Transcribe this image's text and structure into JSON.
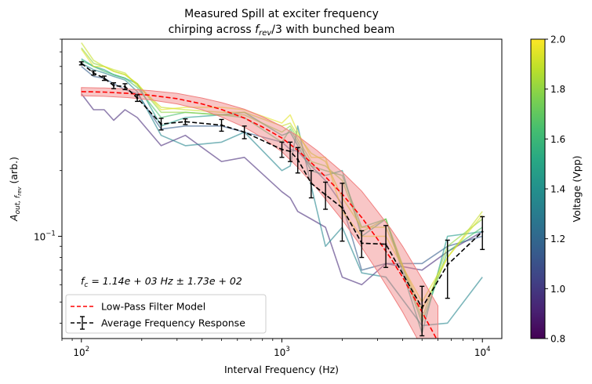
{
  "chart_data": {
    "type": "line",
    "title_line1": "Measured Spill at exciter frequency",
    "title_line2_prefix": "chirping across ",
    "title_line2_math": "f",
    "title_line2_sub": "rev",
    "title_line2_suffix": "/3 with bunched beam",
    "xlabel": "Interval Frequency (Hz)",
    "ylabel_math": "A",
    "ylabel_sub": "out, f",
    "ylabel_subsub": "rev",
    "ylabel_suffix": " (arb.)",
    "x_scale": "log",
    "y_scale": "log",
    "xlim": [
      80,
      12500
    ],
    "ylim": [
      0.034,
      0.8
    ],
    "x_ticks": [
      {
        "value": 100,
        "base": "10",
        "exp": "2"
      },
      {
        "value": 1000,
        "base": "10",
        "exp": "3"
      },
      {
        "value": 10000,
        "base": "10",
        "exp": "4"
      }
    ],
    "y_ticks": [
      {
        "value": 0.1,
        "base": "10",
        "exp": "−1"
      }
    ],
    "annotation": {
      "prefix": "f",
      "sub": "c",
      "body": " = 1.14e + 03 Hz ± 1.73e + 02"
    },
    "legend": {
      "placement": "lower-left",
      "entries": [
        {
          "label": "Low-Pass Filter Model",
          "color": "#ff0000",
          "style": "dashed"
        },
        {
          "label": "Average Frequency Response",
          "color": "#000000",
          "style": "dashed-errorbar"
        }
      ]
    },
    "model": {
      "name": "Low-Pass Filter Model",
      "color": "#ff0000",
      "band_color": "#f08080",
      "x": [
        100,
        130,
        170,
        220,
        300,
        400,
        500,
        650,
        800,
        1000,
        1200,
        1500,
        2000,
        2500,
        3000,
        3500,
        4000,
        5000,
        6000
      ],
      "y": [
        0.46,
        0.458,
        0.452,
        0.443,
        0.427,
        0.404,
        0.381,
        0.348,
        0.317,
        0.282,
        0.248,
        0.205,
        0.156,
        0.122,
        0.097,
        0.079,
        0.065,
        0.045,
        0.033
      ],
      "band_low": [
        0.44,
        0.438,
        0.432,
        0.422,
        0.404,
        0.38,
        0.352,
        0.316,
        0.283,
        0.244,
        0.207,
        0.165,
        0.119,
        0.089,
        0.069,
        0.055,
        0.045,
        0.031,
        0.023
      ],
      "band_high": [
        0.48,
        0.478,
        0.473,
        0.465,
        0.452,
        0.43,
        0.41,
        0.382,
        0.353,
        0.319,
        0.288,
        0.247,
        0.197,
        0.161,
        0.13,
        0.108,
        0.09,
        0.064,
        0.048
      ]
    },
    "average": {
      "name": "Average Frequency Response",
      "color": "#000000",
      "x": [
        100,
        115,
        130,
        145,
        165,
        190,
        250,
        330,
        500,
        650,
        1000,
        1100,
        1200,
        1400,
        1650,
        2000,
        2500,
        3300,
        5000,
        6700,
        10000
      ],
      "y": [
        0.62,
        0.56,
        0.53,
        0.49,
        0.485,
        0.43,
        0.327,
        0.335,
        0.323,
        0.3,
        0.25,
        0.245,
        0.225,
        0.175,
        0.155,
        0.135,
        0.093,
        0.092,
        0.047,
        0.074,
        0.105
      ],
      "err": [
        0.01,
        0.012,
        0.012,
        0.015,
        0.015,
        0.015,
        0.02,
        0.01,
        0.02,
        0.02,
        0.02,
        0.025,
        0.03,
        0.025,
        0.022,
        0.04,
        0.013,
        0.02,
        0.012,
        0.022,
        0.018
      ]
    },
    "voltage_series": [
      {
        "voltage": 0.95,
        "x": [
          100,
          115,
          130,
          145,
          165,
          190,
          250,
          330,
          500,
          650,
          1000,
          1100,
          1200,
          1400,
          1650,
          2000,
          2500,
          3300,
          5000,
          6700,
          10000
        ],
        "y": [
          0.45,
          0.38,
          0.38,
          0.34,
          0.38,
          0.35,
          0.26,
          0.29,
          0.22,
          0.23,
          0.16,
          0.15,
          0.13,
          0.12,
          0.11,
          0.065,
          0.06,
          0.075,
          0.07,
          0.085,
          0.105
        ]
      },
      {
        "voltage": 1.15,
        "x": [
          100,
          115,
          130,
          145,
          165,
          190,
          250,
          330,
          500,
          650,
          1000,
          1100,
          1200,
          1400,
          1650,
          2000,
          2500,
          3300,
          5000,
          6700,
          10000
        ],
        "y": [
          0.6,
          0.54,
          0.53,
          0.5,
          0.47,
          0.45,
          0.31,
          0.32,
          0.32,
          0.3,
          0.27,
          0.25,
          0.245,
          0.21,
          0.18,
          0.14,
          0.07,
          0.075,
          0.075,
          0.09,
          0.1
        ]
      },
      {
        "voltage": 1.35,
        "x": [
          100,
          115,
          130,
          145,
          165,
          190,
          250,
          330,
          500,
          650,
          1000,
          1100,
          1200,
          1400,
          1650,
          2000,
          2500,
          3300,
          5000,
          6700,
          10000
        ],
        "y": [
          0.62,
          0.58,
          0.56,
          0.54,
          0.52,
          0.46,
          0.29,
          0.26,
          0.27,
          0.3,
          0.2,
          0.21,
          0.32,
          0.17,
          0.09,
          0.11,
          0.068,
          0.065,
          0.039,
          0.04,
          0.065
        ]
      },
      {
        "voltage": 1.45,
        "x": [
          100,
          115,
          130,
          145,
          165,
          190,
          250,
          330,
          500,
          650,
          1000,
          1100,
          1200,
          1400,
          1650,
          2000,
          2500,
          3300,
          5000,
          6700,
          10000
        ],
        "y": [
          0.65,
          0.6,
          0.58,
          0.55,
          0.53,
          0.5,
          0.32,
          0.35,
          0.36,
          0.37,
          0.29,
          0.3,
          0.26,
          0.2,
          0.19,
          0.2,
          0.1,
          0.12,
          0.036,
          0.1,
          0.105
        ]
      },
      {
        "voltage": 1.65,
        "x": [
          100,
          115,
          130,
          145,
          165,
          190,
          250,
          330,
          500,
          650,
          1000,
          1100,
          1200,
          1400,
          1650,
          2000,
          2500,
          3300,
          5000,
          6700,
          10000
        ],
        "y": [
          0.64,
          0.6,
          0.57,
          0.55,
          0.53,
          0.48,
          0.35,
          0.37,
          0.36,
          0.35,
          0.27,
          0.31,
          0.27,
          0.21,
          0.2,
          0.19,
          0.11,
          0.12,
          0.04,
          0.085,
          0.11
        ]
      },
      {
        "voltage": 1.8,
        "x": [
          100,
          115,
          130,
          145,
          165,
          190,
          250,
          330,
          500,
          650,
          1000,
          1100,
          1200,
          1400,
          1650,
          2000,
          2500,
          3300,
          5000,
          6700,
          10000
        ],
        "y": [
          0.73,
          0.62,
          0.6,
          0.57,
          0.55,
          0.5,
          0.37,
          0.37,
          0.36,
          0.36,
          0.3,
          0.32,
          0.28,
          0.22,
          0.21,
          0.18,
          0.105,
          0.12,
          0.042,
          0.09,
          0.12
        ]
      },
      {
        "voltage": 1.9,
        "x": [
          100,
          115,
          130,
          145,
          165,
          190,
          250,
          330,
          500,
          650,
          1000,
          1100,
          1200,
          1400,
          1650,
          2000,
          2500,
          3300,
          5000,
          6700,
          10000
        ],
        "y": [
          0.77,
          0.64,
          0.6,
          0.58,
          0.56,
          0.49,
          0.39,
          0.38,
          0.37,
          0.37,
          0.32,
          0.33,
          0.29,
          0.24,
          0.22,
          0.15,
          0.11,
          0.11,
          0.046,
          0.08,
          0.13
        ]
      },
      {
        "voltage": 1.95,
        "x": [
          100,
          115,
          130,
          145,
          165,
          190,
          250,
          330,
          500,
          650,
          1000,
          1100,
          1200,
          1400,
          1650,
          2000,
          2500,
          3300,
          5000,
          6700,
          10000
        ],
        "y": [
          0.72,
          0.6,
          0.6,
          0.57,
          0.55,
          0.5,
          0.38,
          0.39,
          0.39,
          0.38,
          0.33,
          0.36,
          0.3,
          0.23,
          0.23,
          0.13,
          0.1,
          0.1,
          0.05,
          0.08,
          0.125
        ]
      }
    ],
    "colorbar": {
      "label": "Voltage (Vpp)",
      "min": 0.8,
      "max": 2.0,
      "ticks": [
        "0.8",
        "1.0",
        "1.2",
        "1.4",
        "1.6",
        "1.8",
        "2.0"
      ],
      "colormap": "viridis"
    }
  }
}
